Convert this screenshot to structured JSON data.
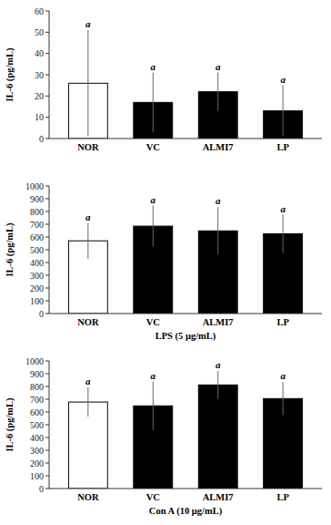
{
  "chart_data": [
    {
      "type": "bar",
      "ylabel": "IL-6 (pg/mL)",
      "ylim": [
        0,
        60
      ],
      "yticks": [
        0,
        10,
        20,
        30,
        40,
        50,
        60
      ],
      "categories": [
        "NOR",
        "VC",
        "ALMI7",
        "LP"
      ],
      "values": [
        26,
        17,
        22,
        13
      ],
      "errors": [
        25,
        14,
        9,
        12
      ],
      "colors": [
        "#ffffff",
        "#000000",
        "#000000",
        "#000000"
      ],
      "annotations": [
        "a",
        "a",
        "a",
        "a"
      ]
    },
    {
      "type": "bar",
      "xlabel": "LPS (5 μg/mL)",
      "ylabel": "IL-6 (pg/mL)",
      "ylim": [
        0,
        1000
      ],
      "yticks": [
        0,
        100,
        200,
        300,
        400,
        500,
        600,
        700,
        800,
        900,
        1000
      ],
      "categories": [
        "NOR",
        "VC",
        "ALMI7",
        "LP"
      ],
      "values": [
        570,
        685,
        648,
        625
      ],
      "errors": [
        140,
        160,
        185,
        150
      ],
      "colors": [
        "#ffffff",
        "#000000",
        "#000000",
        "#000000"
      ],
      "annotations": [
        "a",
        "a",
        "a",
        "a"
      ]
    },
    {
      "type": "bar",
      "xlabel": "Con A (10 μg/mL)",
      "ylabel": "IL-6 (pg/mL)",
      "ylim": [
        0,
        1000
      ],
      "yticks": [
        0,
        100,
        200,
        300,
        400,
        500,
        600,
        700,
        800,
        900,
        1000
      ],
      "categories": [
        "NOR",
        "VC",
        "ALMI7",
        "LP"
      ],
      "values": [
        678,
        648,
        812,
        705
      ],
      "errors": [
        115,
        190,
        110,
        130
      ],
      "colors": [
        "#ffffff",
        "#000000",
        "#000000",
        "#000000"
      ],
      "annotations": [
        "a",
        "a",
        "a",
        "a"
      ]
    }
  ]
}
